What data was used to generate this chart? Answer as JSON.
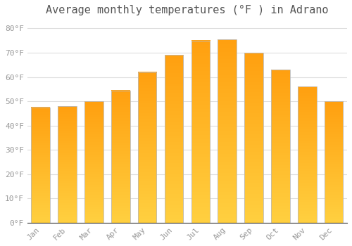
{
  "title": "Average monthly temperatures (°F ) in Adrano",
  "months": [
    "Jan",
    "Feb",
    "Mar",
    "Apr",
    "May",
    "Jun",
    "Jul",
    "Aug",
    "Sep",
    "Oct",
    "Nov",
    "Dec"
  ],
  "values": [
    47.5,
    48.0,
    50.0,
    54.5,
    62.0,
    69.0,
    75.0,
    75.5,
    70.0,
    63.0,
    56.0,
    50.0
  ],
  "bar_color_bottom": "#FFD040",
  "bar_color_top": "#FFA010",
  "bar_edge_color": "#BBBBBB",
  "background_color": "#FFFFFF",
  "grid_color": "#DDDDDD",
  "ytick_labels": [
    "0°F",
    "10°F",
    "20°F",
    "30°F",
    "40°F",
    "50°F",
    "60°F",
    "70°F",
    "80°F"
  ],
  "ytick_values": [
    0,
    10,
    20,
    30,
    40,
    50,
    60,
    70,
    80
  ],
  "ylim": [
    0,
    83
  ],
  "title_fontsize": 11,
  "tick_fontsize": 8,
  "tick_color": "#999999",
  "title_color": "#555555",
  "font_family": "monospace",
  "gradient_steps": 100,
  "bar_width": 0.7
}
